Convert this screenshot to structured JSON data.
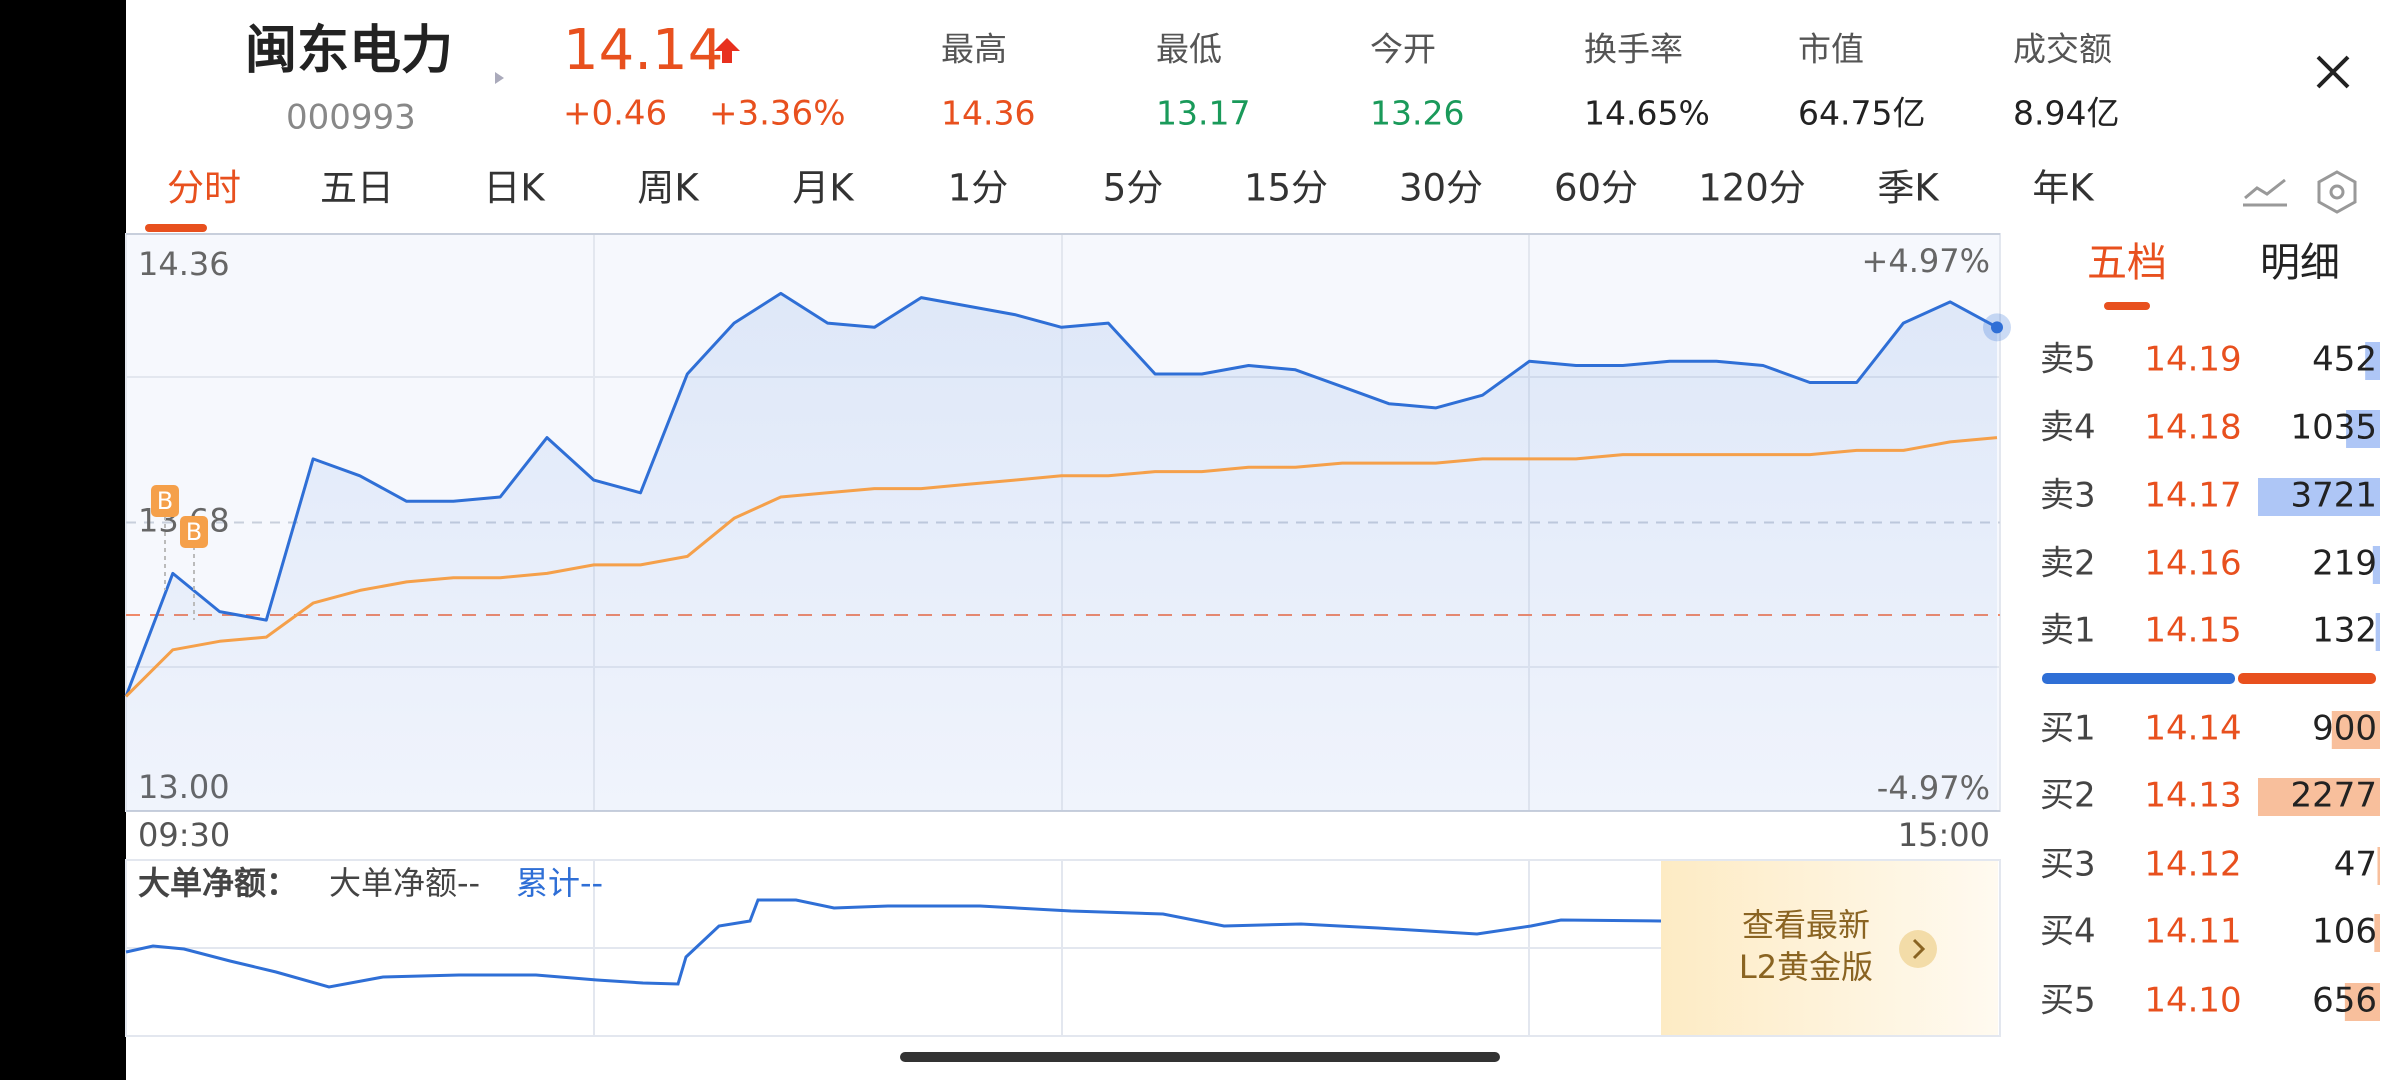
{
  "header": {
    "name": "闽东电力",
    "code": "000993",
    "price": "14.14",
    "change": "+0.46",
    "change_pct": "+3.36%",
    "stats": [
      {
        "label": "最高",
        "value": "14.36",
        "color": "#e8501e"
      },
      {
        "label": "最低",
        "value": "13.17",
        "color": "#1a9a5a"
      },
      {
        "label": "今开",
        "value": "13.26",
        "color": "#1a9a5a"
      },
      {
        "label": "换手率",
        "value": "14.65%",
        "color": "#222222"
      },
      {
        "label": "市值",
        "value": "64.75亿",
        "color": "#222222"
      },
      {
        "label": "成交额",
        "value": "8.94亿",
        "color": "#222222"
      }
    ]
  },
  "tabs": [
    "分时",
    "五日",
    "日K",
    "周K",
    "月K",
    "1分",
    "5分",
    "15分",
    "30分",
    "60分",
    "120分",
    "季K",
    "年K"
  ],
  "chart_data": {
    "type": "line",
    "ylim": [
      13,
      14.36
    ],
    "yticks": [
      14.36,
      13.68,
      {
        "value": 13,
        "label": "13.00"
      }
    ],
    "right_labels": [
      "+4.97%",
      "-4.97%"
    ],
    "x_labels": [
      "09:30",
      "15:00"
    ],
    "markers": [
      "B",
      "B"
    ],
    "series": [
      {
        "color": "#2f6fd6",
        "values": [
          13.27,
          13.56,
          13.47,
          13.45,
          13.83,
          13.79,
          13.73,
          13.73,
          13.74,
          13.88,
          13.78,
          13.75,
          14.03,
          14.15,
          14.22,
          14.15,
          14.14,
          14.21,
          14.19,
          14.17,
          14.14,
          14.15,
          14.03,
          14.03,
          14.05,
          14.04,
          14.0,
          13.96,
          13.95,
          13.98,
          14.06,
          14.05,
          14.05,
          14.06,
          14.06,
          14.05,
          14.01,
          14.01,
          14.15,
          14.2,
          14.14
        ]
      },
      {
        "color": "#f5a04a",
        "values": [
          13.27,
          13.38,
          13.4,
          13.41,
          13.49,
          13.52,
          13.54,
          13.55,
          13.55,
          13.56,
          13.58,
          13.58,
          13.6,
          13.69,
          13.74,
          13.75,
          13.76,
          13.76,
          13.77,
          13.78,
          13.79,
          13.79,
          13.8,
          13.8,
          13.81,
          13.81,
          13.82,
          13.82,
          13.82,
          13.83,
          13.83,
          13.83,
          13.84,
          13.84,
          13.84,
          13.84,
          13.84,
          13.85,
          13.85,
          13.87,
          13.88
        ]
      }
    ]
  },
  "flow": {
    "title": "大单净额：",
    "item": "大单净额--",
    "total": "累计--"
  },
  "promo": {
    "line1": "查看最新",
    "line2": "L2黄金版"
  },
  "order_book": {
    "tabs": [
      "五档",
      "明细"
    ],
    "asks": [
      {
        "label": "卖5",
        "price": "14.19",
        "volume": 452
      },
      {
        "label": "卖4",
        "price": "14.18",
        "volume": 1035
      },
      {
        "label": "卖3",
        "price": "14.17",
        "volume": 3721
      },
      {
        "label": "卖2",
        "price": "14.16",
        "volume": 219
      },
      {
        "label": "卖1",
        "price": "14.15",
        "volume": 132
      }
    ],
    "bids": [
      {
        "label": "买1",
        "price": "14.14",
        "volume": 900
      },
      {
        "label": "买2",
        "price": "14.13",
        "volume": 2277
      },
      {
        "label": "买3",
        "price": "14.12",
        "volume": 47
      },
      {
        "label": "买4",
        "price": "14.11",
        "volume": 106
      },
      {
        "label": "买5",
        "price": "14.10",
        "volume": 656
      }
    ]
  }
}
